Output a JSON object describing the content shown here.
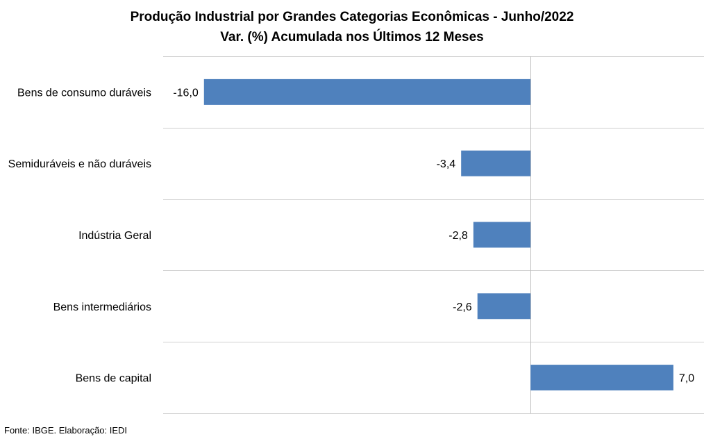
{
  "chart_data": {
    "type": "bar",
    "orientation": "horizontal",
    "title": "Produção Industrial por Grandes Categorias Econômicas - Junho/2022",
    "subtitle": "Var. (%) Acumulada nos Últimos 12 Meses",
    "categories": [
      "Bens de consumo duráveis",
      "Semiduráveis e não duráveis",
      "Indústria Geral",
      "Bens intermediários",
      "Bens de capital"
    ],
    "values": [
      -16.0,
      -3.4,
      -2.8,
      -2.6,
      7.0
    ],
    "data_labels": [
      "-16,0",
      "-3,4",
      "-2,8",
      "-2,6",
      "7,0"
    ],
    "xlim": [
      -18,
      8.5
    ],
    "grid": true,
    "bar_color": "#4f81bd",
    "grid_color": "#d0d0d0",
    "axis_color": "#bfbfbf"
  },
  "source": "Fonte: IBGE. Elaboração: IEDI"
}
